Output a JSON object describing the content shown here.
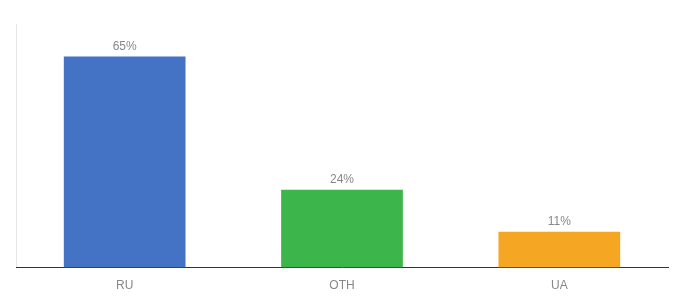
{
  "chart_data": {
    "type": "bar",
    "categories": [
      "RU",
      "OTH",
      "UA"
    ],
    "values": [
      65,
      24,
      11
    ],
    "value_labels": [
      "65%",
      "24%",
      "11%"
    ],
    "colors": [
      "#4472c4",
      "#3cb54a",
      "#f5a623"
    ],
    "ylim": [
      0,
      75
    ],
    "grid": false,
    "data_labels": true,
    "tick_labels": "x"
  }
}
